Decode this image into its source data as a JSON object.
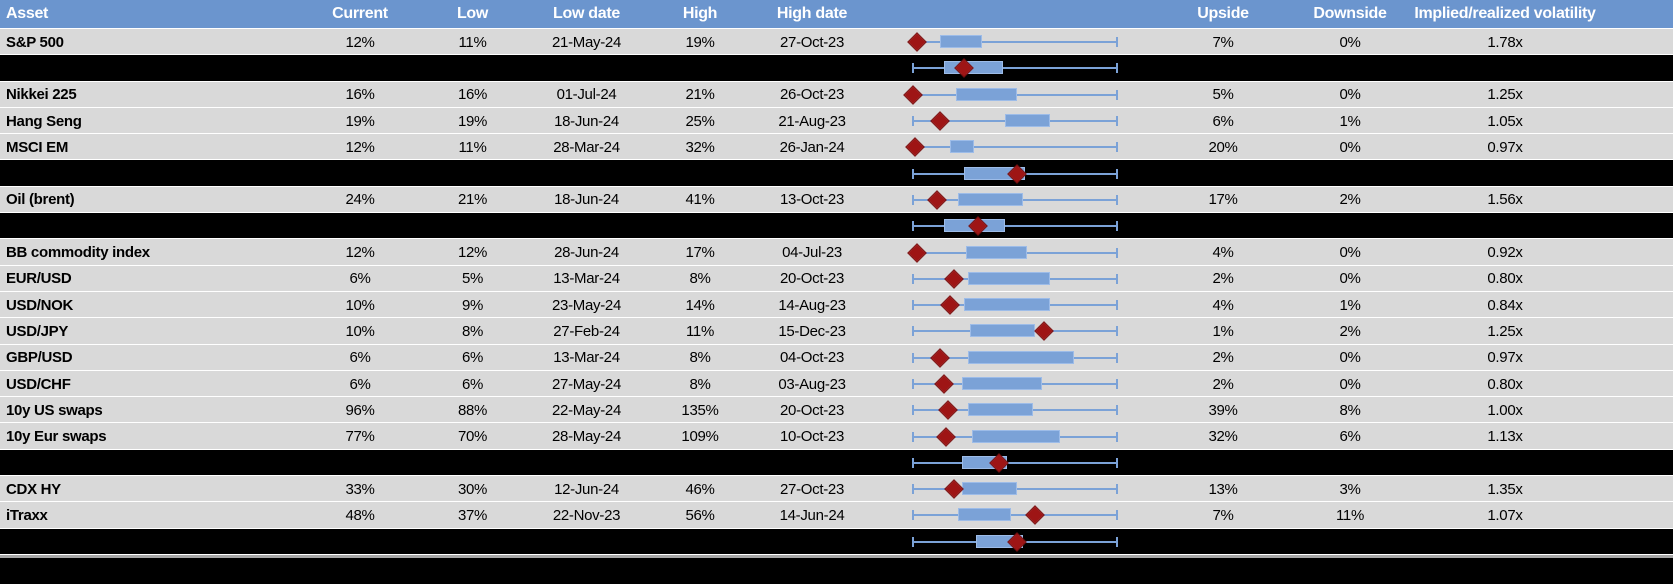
{
  "title": "Asset volatility ranges table with low-high box plots",
  "colors": {
    "header_bg": "#6b95ce",
    "header_text": "#ffffff",
    "row_bg": "#d9d9d9",
    "separator_bg": "#000000",
    "box_fill": "#7ba2d7",
    "box_border": "#9dbce8",
    "whisker": "#7ba2d7",
    "diamond_marker": "#9e1515",
    "bottom_divider": "#a6a6a6",
    "text": "#000000"
  },
  "header": {
    "columns": [
      {
        "label": "Asset"
      },
      {
        "label": "Current"
      },
      {
        "label": "Low"
      },
      {
        "label": "Low date"
      },
      {
        "label": "High"
      },
      {
        "label": "High date"
      },
      {
        "label": ""
      },
      {
        "label": "Upside"
      },
      {
        "label": "Downside"
      },
      {
        "label": "Implied/realized volatility"
      }
    ]
  },
  "chart_data": {
    "type": "table",
    "title": "",
    "description": "Table of asset volatilities: current vs 1y low/high with dates, plus an embedded horizontal box-whisker plot per row (whisker = low-to-high range, blue box = interquartile-style range, red diamond = current level position, normalized 0 = low, 1 = high). Black rows are group separator/aggregate rows showing only a box plot.",
    "boxplot_axis": {
      "range": [
        0,
        1
      ],
      "note": "normalized position within each asset's low-high volatility range"
    },
    "columns": [
      "Asset",
      "Current",
      "Low",
      "Low date",
      "High",
      "High date",
      "Range plot",
      "Upside",
      "Downside",
      "Implied/realized volatility"
    ],
    "rows": [
      {
        "type": "data",
        "asset": "S&P 500",
        "current": "12%",
        "low": "11%",
        "low_date": "21-May-24",
        "high": "19%",
        "high_date": "27-Oct-23",
        "upside": "7%",
        "downside": "0%",
        "implied": "1.78x",
        "plot": {
          "whisker": [
            0.02,
            1
          ],
          "box": [
            0.13,
            0.34
          ],
          "diamond": 0.02
        }
      },
      {
        "type": "separator",
        "plot": {
          "whisker": [
            0,
            1
          ],
          "box": [
            0.15,
            0.44
          ],
          "diamond": 0.25
        }
      },
      {
        "type": "data",
        "asset": "Nikkei 225",
        "current": "16%",
        "low": "16%",
        "low_date": "01-Jul-24",
        "high": "21%",
        "high_date": "26-Oct-23",
        "upside": "5%",
        "downside": "0%",
        "implied": "1.25x",
        "plot": {
          "whisker": [
            0,
            1
          ],
          "box": [
            0.21,
            0.51
          ],
          "diamond": 0.0
        }
      },
      {
        "type": "data",
        "asset": "Hang Seng",
        "current": "19%",
        "low": "19%",
        "low_date": "18-Jun-24",
        "high": "25%",
        "high_date": "21-Aug-23",
        "upside": "6%",
        "downside": "1%",
        "implied": "1.05x",
        "plot": {
          "whisker": [
            0,
            1
          ],
          "box": [
            0.45,
            0.67
          ],
          "diamond": 0.13
        }
      },
      {
        "type": "data",
        "asset": "MSCI EM",
        "current": "12%",
        "low": "11%",
        "low_date": "28-Mar-24",
        "high": "32%",
        "high_date": "26-Jan-24",
        "upside": "20%",
        "downside": "0%",
        "implied": "0.97x",
        "plot": {
          "whisker": [
            0,
            1
          ],
          "box": [
            0.18,
            0.3
          ],
          "diamond": 0.01
        }
      },
      {
        "type": "separator",
        "plot": {
          "whisker": [
            0,
            1
          ],
          "box": [
            0.25,
            0.55
          ],
          "diamond": 0.51
        }
      },
      {
        "type": "data",
        "asset": "Oil (brent)",
        "current": "24%",
        "low": "21%",
        "low_date": "18-Jun-24",
        "high": "41%",
        "high_date": "13-Oct-23",
        "upside": "17%",
        "downside": "2%",
        "implied": "1.56x",
        "plot": {
          "whisker": [
            0,
            1
          ],
          "box": [
            0.22,
            0.54
          ],
          "diamond": 0.12
        }
      },
      {
        "type": "separator",
        "plot": {
          "whisker": [
            0,
            1
          ],
          "box": [
            0.15,
            0.45
          ],
          "diamond": 0.32
        }
      },
      {
        "type": "data",
        "asset": "BB commodity index",
        "current": "12%",
        "low": "12%",
        "low_date": "28-Jun-24",
        "high": "17%",
        "high_date": "04-Jul-23",
        "upside": "4%",
        "downside": "0%",
        "implied": "0.92x",
        "plot": {
          "whisker": [
            0,
            1
          ],
          "box": [
            0.26,
            0.56
          ],
          "diamond": 0.02
        }
      },
      {
        "type": "data",
        "asset": "EUR/USD",
        "current": "6%",
        "low": "5%",
        "low_date": "13-Mar-24",
        "high": "8%",
        "high_date": "20-Oct-23",
        "upside": "2%",
        "downside": "0%",
        "implied": "0.80x",
        "plot": {
          "whisker": [
            0,
            1
          ],
          "box": [
            0.27,
            0.67
          ],
          "diamond": 0.2
        }
      },
      {
        "type": "data",
        "asset": "USD/NOK",
        "current": "10%",
        "low": "9%",
        "low_date": "23-May-24",
        "high": "14%",
        "high_date": "14-Aug-23",
        "upside": "4%",
        "downside": "1%",
        "implied": "0.84x",
        "plot": {
          "whisker": [
            0,
            1
          ],
          "box": [
            0.25,
            0.67
          ],
          "diamond": 0.18
        }
      },
      {
        "type": "data",
        "asset": "USD/JPY",
        "current": "10%",
        "low": "8%",
        "low_date": "27-Feb-24",
        "high": "11%",
        "high_date": "15-Dec-23",
        "upside": "1%",
        "downside": "2%",
        "implied": "1.25x",
        "plot": {
          "whisker": [
            0,
            1
          ],
          "box": [
            0.28,
            0.6
          ],
          "diamond": 0.64
        }
      },
      {
        "type": "data",
        "asset": "GBP/USD",
        "current": "6%",
        "low": "6%",
        "low_date": "13-Mar-24",
        "high": "8%",
        "high_date": "04-Oct-23",
        "upside": "2%",
        "downside": "0%",
        "implied": "0.97x",
        "plot": {
          "whisker": [
            0,
            1
          ],
          "box": [
            0.27,
            0.79
          ],
          "diamond": 0.13
        }
      },
      {
        "type": "data",
        "asset": "USD/CHF",
        "current": "6%",
        "low": "6%",
        "low_date": "27-May-24",
        "high": "8%",
        "high_date": "03-Aug-23",
        "upside": "2%",
        "downside": "0%",
        "implied": "0.80x",
        "plot": {
          "whisker": [
            0,
            1
          ],
          "box": [
            0.24,
            0.63
          ],
          "diamond": 0.15
        }
      },
      {
        "type": "data",
        "asset": "10y US swaps",
        "current": "96%",
        "low": "88%",
        "low_date": "22-May-24",
        "high": "135%",
        "high_date": "20-Oct-23",
        "upside": "39%",
        "downside": "8%",
        "implied": "1.00x",
        "plot": {
          "whisker": [
            0,
            1
          ],
          "box": [
            0.27,
            0.59
          ],
          "diamond": 0.17
        }
      },
      {
        "type": "data",
        "asset": "10y Eur swaps",
        "current": "77%",
        "low": "70%",
        "low_date": "28-May-24",
        "high": "109%",
        "high_date": "10-Oct-23",
        "upside": "32%",
        "downside": "6%",
        "implied": "1.13x",
        "plot": {
          "whisker": [
            0,
            1
          ],
          "box": [
            0.29,
            0.72
          ],
          "diamond": 0.16
        }
      },
      {
        "type": "separator",
        "plot": {
          "whisker": [
            0,
            1
          ],
          "box": [
            0.24,
            0.46
          ],
          "diamond": 0.42
        }
      },
      {
        "type": "data",
        "asset": "CDX HY",
        "current": "33%",
        "low": "30%",
        "low_date": "12-Jun-24",
        "high": "46%",
        "high_date": "27-Oct-23",
        "upside": "13%",
        "downside": "3%",
        "implied": "1.35x",
        "plot": {
          "whisker": [
            0,
            1
          ],
          "box": [
            0.24,
            0.51
          ],
          "diamond": 0.2
        }
      },
      {
        "type": "data",
        "asset": "iTraxx",
        "current": "48%",
        "low": "37%",
        "low_date": "22-Nov-23",
        "high": "56%",
        "high_date": "14-Jun-24",
        "upside": "7%",
        "downside": "11%",
        "implied": "1.07x",
        "plot": {
          "whisker": [
            0,
            1
          ],
          "box": [
            0.22,
            0.48
          ],
          "diamond": 0.6
        }
      },
      {
        "type": "separator",
        "plot": {
          "whisker": [
            0,
            1
          ],
          "box": [
            0.31,
            0.54
          ],
          "diamond": 0.51
        }
      }
    ]
  }
}
